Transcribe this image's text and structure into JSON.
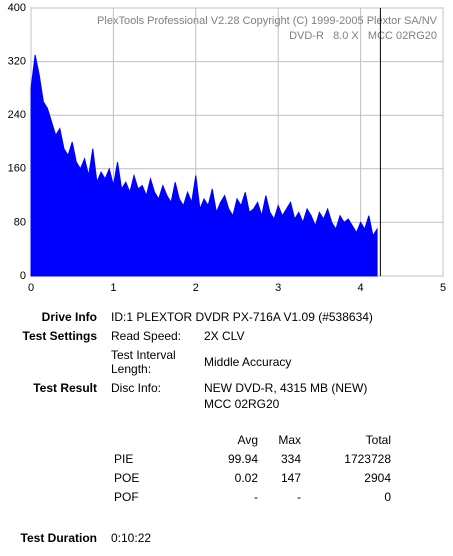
{
  "chart_data": {
    "type": "area",
    "color": "#0000ff",
    "annotations": [
      "PlexTools Professional V2.28 Copyright (C) 1999-2005 Plextor SA/NV",
      "DVD-R   8.0 X   MCC 02RG20"
    ],
    "x": [
      0,
      0.05,
      0.1,
      0.15,
      0.2,
      0.25,
      0.3,
      0.35,
      0.4,
      0.45,
      0.5,
      0.55,
      0.6,
      0.65,
      0.7,
      0.75,
      0.8,
      0.85,
      0.9,
      0.95,
      1,
      1.05,
      1.1,
      1.15,
      1.2,
      1.25,
      1.3,
      1.35,
      1.4,
      1.45,
      1.5,
      1.55,
      1.6,
      1.65,
      1.7,
      1.75,
      1.8,
      1.85,
      1.9,
      1.95,
      2,
      2.05,
      2.1,
      2.15,
      2.2,
      2.25,
      2.3,
      2.35,
      2.4,
      2.45,
      2.5,
      2.55,
      2.6,
      2.65,
      2.7,
      2.75,
      2.8,
      2.85,
      2.9,
      2.95,
      3,
      3.05,
      3.1,
      3.15,
      3.2,
      3.25,
      3.3,
      3.35,
      3.4,
      3.45,
      3.5,
      3.55,
      3.6,
      3.65,
      3.7,
      3.75,
      3.8,
      3.85,
      3.9,
      3.95,
      4,
      4.05,
      4.1,
      4.15,
      4.2
    ],
    "values": [
      280,
      330,
      300,
      260,
      250,
      230,
      210,
      220,
      190,
      180,
      200,
      170,
      160,
      175,
      150,
      190,
      140,
      155,
      145,
      160,
      135,
      170,
      130,
      140,
      125,
      150,
      130,
      135,
      120,
      145,
      125,
      115,
      135,
      120,
      110,
      140,
      115,
      105,
      125,
      110,
      150,
      100,
      115,
      105,
      130,
      95,
      110,
      120,
      100,
      90,
      115,
      105,
      125,
      95,
      100,
      110,
      90,
      120,
      95,
      85,
      105,
      90,
      100,
      110,
      85,
      95,
      80,
      100,
      90,
      75,
      95,
      85,
      100,
      80,
      70,
      90,
      80,
      85,
      75,
      65,
      80,
      70,
      90,
      60,
      70
    ],
    "end_marker": 4.24,
    "xlim": [
      0,
      5
    ],
    "xticks": [
      0,
      1,
      2,
      3,
      4,
      5
    ],
    "ylim": [
      0,
      400
    ],
    "yticks": [
      0,
      80,
      160,
      240,
      320,
      400
    ],
    "grid": true
  },
  "report": {
    "drive_info": {
      "label": "Drive Info",
      "value": "ID:1 PLEXTOR DVDR PX-716A V1.09 (#538634)"
    },
    "test_settings": {
      "label": "Test Settings",
      "read_speed_label": "Read Speed:",
      "read_speed": "2X CLV",
      "interval_label": "Test Interval Length:",
      "interval": "Middle Accuracy"
    },
    "test_result": {
      "label": "Test Result",
      "disc_info_label": "Disc Info:",
      "disc_info": [
        "NEW DVD-R, 4315 MB (NEW)",
        "MCC 02RG20"
      ]
    },
    "stats": {
      "headers": [
        "Avg",
        "Max",
        "Total"
      ],
      "rows": [
        [
          "PIE",
          "99.94",
          "334",
          "1723728"
        ],
        [
          "POE",
          "0.02",
          "147",
          "2904"
        ],
        [
          "POF",
          "-",
          "-",
          "0"
        ]
      ]
    },
    "test_duration": {
      "label": "Test Duration",
      "value": "0:10:22"
    }
  }
}
